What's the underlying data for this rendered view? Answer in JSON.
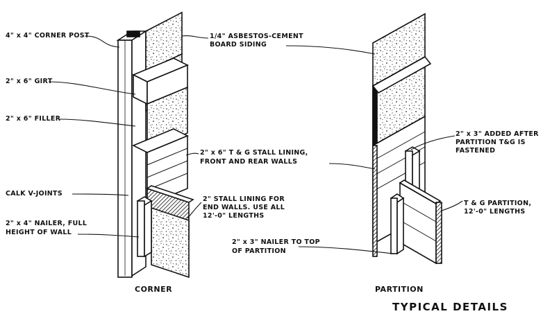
{
  "labels": {
    "corner_post": "4\" x 4\" CORNER POST",
    "siding_line1": "1/4\" ASBESTOS-CEMENT",
    "siding_line2": "BOARD SIDING",
    "girt": "2\" x 6\" GIRT",
    "filler": "2\" x 6\" FILLER",
    "stall_lining_line1": "2\" x 6\" T & G STALL LINING,",
    "stall_lining_line2": "FRONT AND REAR WALLS",
    "calk": "CALK V-JOINTS",
    "end_wall_line1": "2\" STALL LINING FOR",
    "end_wall_line2": "END WALLS. USE ALL",
    "end_wall_line3": "12'-0\" LENGTHS",
    "nailer_line1": "2\" x 4\" NAILER, FULL",
    "nailer_line2": "HEIGHT OF WALL",
    "added_line1": "2\" x 3\" ADDED AFTER",
    "added_line2": "PARTITION T&G IS",
    "added_line3": "FASTENED",
    "partition_line1": "T & G PARTITION,",
    "partition_line2": "12'-0\" LENGTHS",
    "nailer_top_line1": "2\" x 3\" NAILER TO TOP",
    "nailer_top_line2": "OF PARTITION"
  },
  "captions": {
    "corner": "CORNER",
    "partition": "PARTITION"
  },
  "title": "TYPICAL DETAILS"
}
